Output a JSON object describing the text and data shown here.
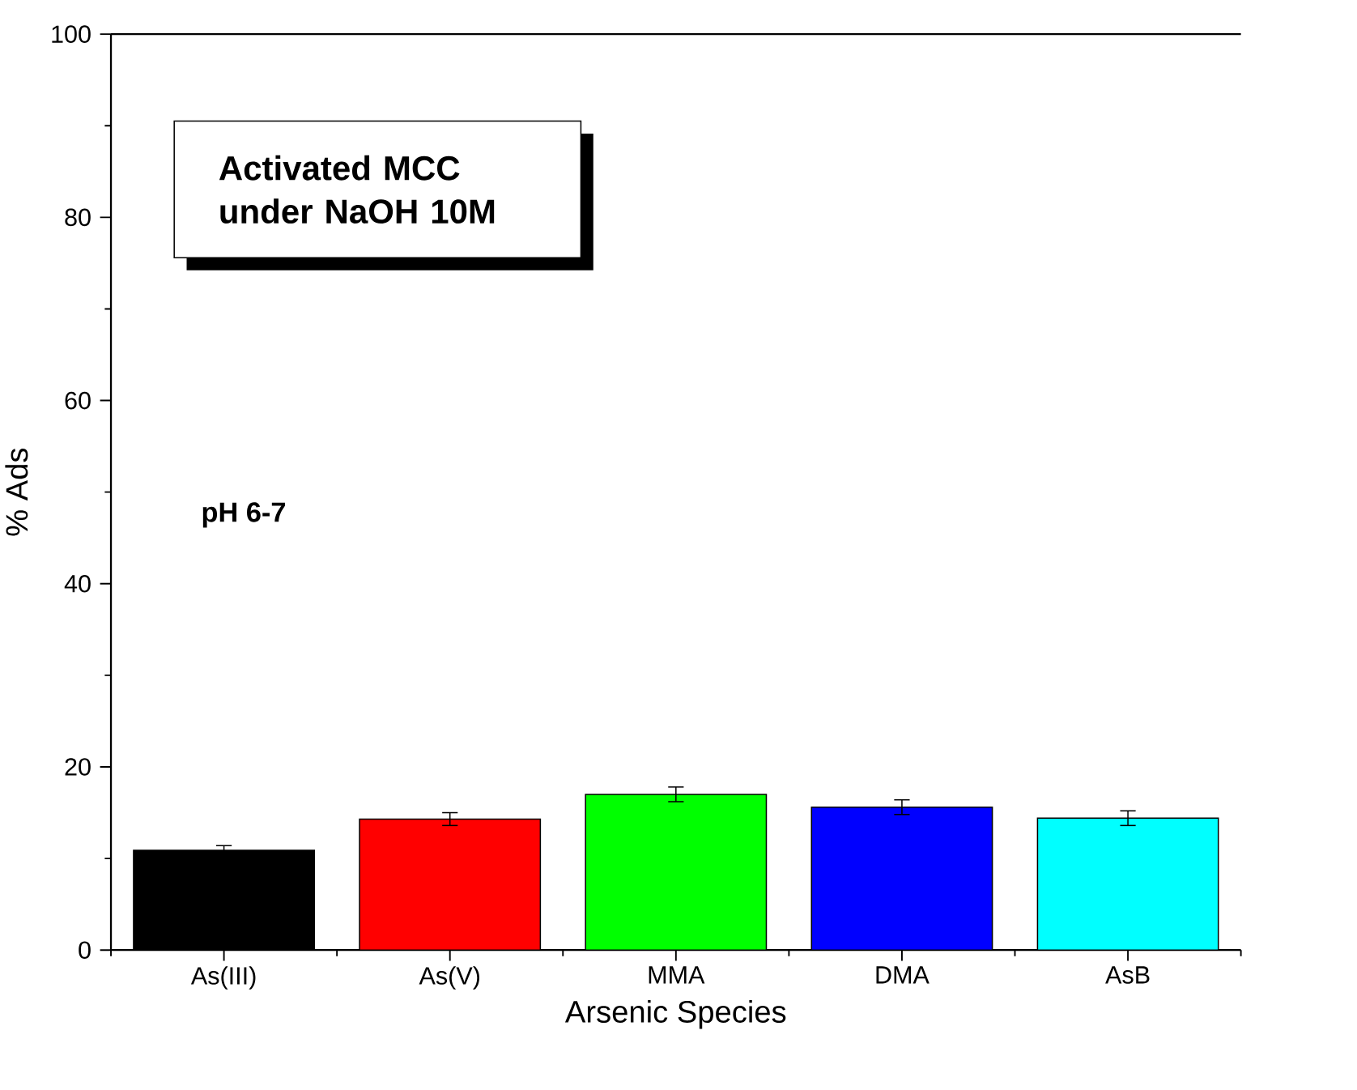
{
  "chart_data": {
    "type": "bar",
    "xlabel": "Arsenic Species",
    "ylabel": "% Ads",
    "categories": [
      "As(III)",
      "As(V)",
      "MMA",
      "DMA",
      "AsB"
    ],
    "values": [
      10.9,
      14.3,
      17.0,
      15.6,
      14.4
    ],
    "errors": [
      0.5,
      0.7,
      0.8,
      0.8,
      0.8
    ],
    "colors": [
      "#000000",
      "#ff0000",
      "#00ff00",
      "#0000ff",
      "#00ffff"
    ],
    "ylim": [
      0,
      100
    ],
    "yticks": [
      0,
      20,
      40,
      60,
      80,
      100
    ],
    "grid": false,
    "annotations": [
      "Activated MCC under NaOH 10M",
      "pH 6-7"
    ]
  }
}
